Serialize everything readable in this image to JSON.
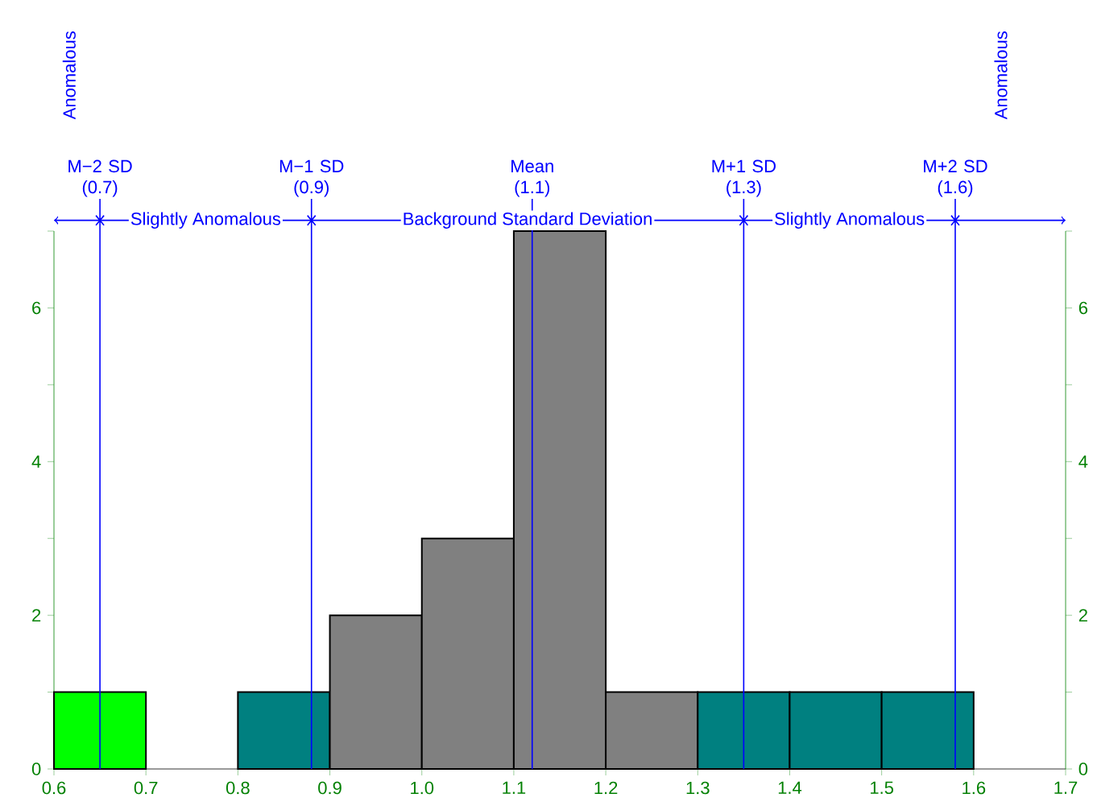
{
  "chart_data": {
    "type": "histogram",
    "bins": [
      0.6,
      0.7,
      0.8,
      0.9,
      1.0,
      1.1,
      1.2,
      1.3,
      1.4,
      1.5,
      1.6
    ],
    "values": [
      1,
      0,
      1,
      2,
      3,
      7,
      1,
      1,
      1,
      1
    ],
    "colors": [
      "#00ff00",
      null,
      "#008080",
      "#808080",
      "#808080",
      "#808080",
      "#808080",
      "#008080",
      "#008080",
      "#008080"
    ],
    "xlim": [
      0.6,
      1.7
    ],
    "xticks": [
      0.6,
      0.7,
      0.8,
      0.9,
      {
        "value": 1.0,
        "label": "1.0"
      },
      1.1,
      1.2,
      1.3,
      1.4,
      1.5,
      1.6,
      1.7
    ],
    "ylim": [
      0,
      7
    ],
    "yticks": [
      0,
      {
        "value": 1,
        "label": null
      },
      2,
      {
        "value": 3,
        "label": null
      },
      4,
      {
        "value": 5,
        "label": null
      },
      6,
      {
        "value": 7,
        "label": null
      }
    ],
    "y2lim": [
      0,
      7
    ],
    "y2ticks": [
      0,
      {
        "value": 1,
        "label": null
      },
      2,
      {
        "value": 3,
        "label": null
      },
      4,
      {
        "value": 5,
        "label": null
      },
      6,
      {
        "value": 7,
        "label": null
      }
    ],
    "ref_lines": [
      {
        "axis": "x",
        "value": 0.65,
        "label": "M−2 SD (0.7)",
        "color": "#0000ff"
      },
      {
        "axis": "x",
        "value": 0.88,
        "label": "M−1 SD (0.9)",
        "color": "#0000ff"
      },
      {
        "axis": "x",
        "value": 1.12,
        "label": "Mean (1.1)",
        "color": "#0000ff"
      },
      {
        "axis": "x",
        "value": 1.35,
        "label": "M+1 SD (1.3)",
        "color": "#0000ff"
      },
      {
        "axis": "x",
        "value": 1.58,
        "label": "M+2 SD (1.6)",
        "color": "#0000ff"
      }
    ],
    "annotations": [
      "Anomalous",
      "Slightly Anomalous",
      "Background Standard Deviation",
      "Slightly Anomalous",
      "Anomalous"
    ]
  }
}
